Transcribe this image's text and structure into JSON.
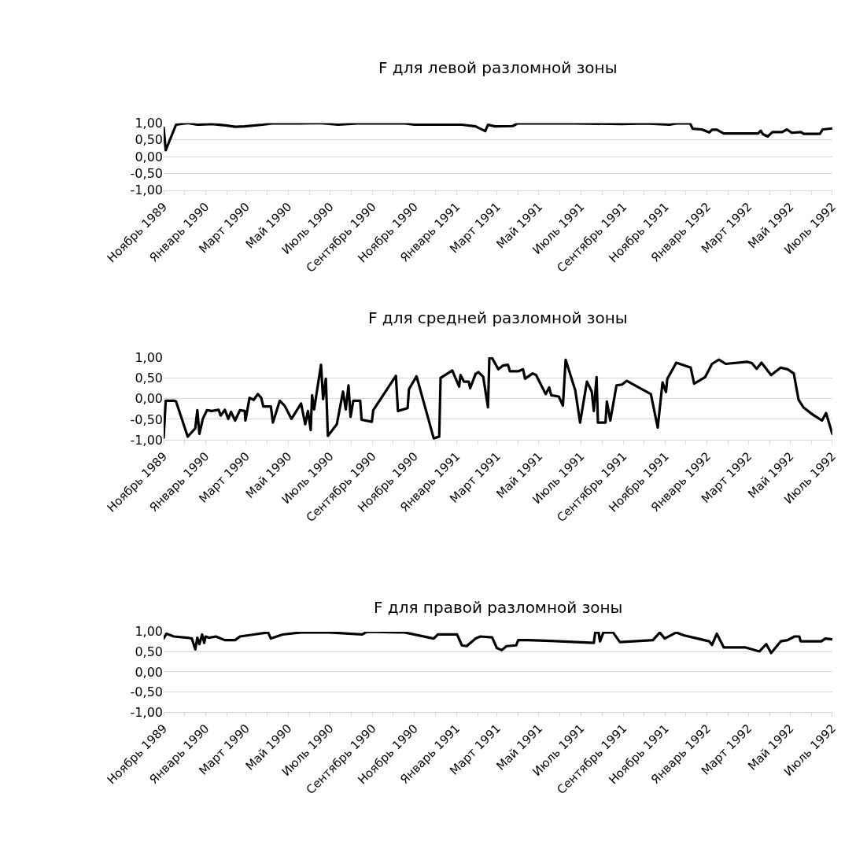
{
  "chart_data": [
    {
      "type": "line",
      "title": "F для левой разломной зоны",
      "grid": "y",
      "xlim": [
        "1989-11-01",
        "1992-07-01"
      ],
      "ylim": [
        -1,
        1
      ],
      "yticks": [
        {
          "value": -1,
          "label": "-1,00"
        },
        {
          "value": -0.5,
          "label": "-0,50"
        },
        {
          "value": 0,
          "label": "0,00"
        },
        {
          "value": 0.5,
          "label": "0,50"
        },
        {
          "value": 1,
          "label": "1,00"
        }
      ],
      "xticks": [
        {
          "value": "1989-11-01",
          "label": "Ноябрь 1989"
        },
        {
          "value": "1989-12-01",
          "label": null
        },
        {
          "value": "1990-01-01",
          "label": "Январь 1990"
        },
        {
          "value": "1990-02-01",
          "label": null
        },
        {
          "value": "1990-03-01",
          "label": "Март 1990"
        },
        {
          "value": "1990-04-01",
          "label": null
        },
        {
          "value": "1990-05-01",
          "label": "Май 1990"
        },
        {
          "value": "1990-06-01",
          "label": null
        },
        {
          "value": "1990-07-01",
          "label": "Июль 1990"
        },
        {
          "value": "1990-08-01",
          "label": null
        },
        {
          "value": "1990-09-01",
          "label": "Сентябрь 1990"
        },
        {
          "value": "1990-10-01",
          "label": null
        },
        {
          "value": "1990-11-01",
          "label": "Ноябрь 1990"
        },
        {
          "value": "1990-12-01",
          "label": null
        },
        {
          "value": "1991-01-01",
          "label": "Январь 1991"
        },
        {
          "value": "1991-02-01",
          "label": null
        },
        {
          "value": "1991-03-01",
          "label": "Март 1991"
        },
        {
          "value": "1991-04-01",
          "label": null
        },
        {
          "value": "1991-05-01",
          "label": "Май 1991"
        },
        {
          "value": "1991-06-01",
          "label": null
        },
        {
          "value": "1991-07-01",
          "label": "Июль 1991"
        },
        {
          "value": "1991-08-01",
          "label": null
        },
        {
          "value": "1991-09-01",
          "label": "Сентябрь 1991"
        },
        {
          "value": "1991-10-01",
          "label": null
        },
        {
          "value": "1991-11-01",
          "label": "Ноябрь 1991"
        },
        {
          "value": "1991-12-01",
          "label": null
        },
        {
          "value": "1992-01-01",
          "label": "Январь 1992"
        },
        {
          "value": "1992-02-01",
          "label": null
        },
        {
          "value": "1992-03-01",
          "label": "Март 1992"
        },
        {
          "value": "1992-04-01",
          "label": null
        },
        {
          "value": "1992-05-01",
          "label": "Май 1992"
        },
        {
          "value": "1992-06-01",
          "label": null
        },
        {
          "value": "1992-07-01",
          "label": "Июль 1992"
        }
      ],
      "series": [
        {
          "color": "#000000",
          "x": [
            "1989-11-01",
            "1989-11-04",
            "1989-11-19",
            "1989-12-06",
            "1989-12-20",
            "1990-01-10",
            "1990-01-30",
            "1990-02-13",
            "1990-02-27",
            "1990-03-25",
            "1990-04-08",
            "1990-05-19",
            "1990-06-16",
            "1990-07-13",
            "1990-08-10",
            "1990-10-18",
            "1990-11-01",
            "1991-01-09",
            "1991-01-29",
            "1991-02-12",
            "1991-02-16",
            "1991-02-26",
            "1991-03-24",
            "1991-03-31",
            "1991-06-21",
            "1991-08-29",
            "1991-10-03",
            "1991-11-07",
            "1991-11-17",
            "1991-12-07",
            "1991-12-11",
            "1991-12-24",
            "1992-01-04",
            "1992-01-08",
            "1992-01-15",
            "1992-01-25",
            "1992-03-15",
            "1992-03-19",
            "1992-03-22",
            "1992-03-29",
            "1992-04-05",
            "1992-04-19",
            "1992-04-26",
            "1992-05-03",
            "1992-05-17",
            "1992-05-20",
            "1992-06-13",
            "1992-06-17",
            "1992-07-01"
          ],
          "values": [
            0.86,
            0.19,
            0.95,
            1.0,
            0.95,
            0.97,
            0.93,
            0.89,
            0.9,
            0.95,
            0.99,
            0.99,
            1.0,
            0.95,
            0.99,
            0.99,
            0.95,
            0.95,
            0.9,
            0.76,
            0.95,
            0.9,
            0.91,
            0.99,
            0.99,
            0.97,
            0.99,
            0.95,
            0.99,
            0.99,
            0.83,
            0.81,
            0.72,
            0.8,
            0.8,
            0.69,
            0.69,
            0.77,
            0.67,
            0.6,
            0.73,
            0.73,
            0.81,
            0.71,
            0.73,
            0.68,
            0.68,
            0.81,
            0.84
          ]
        }
      ]
    },
    {
      "type": "line",
      "title": "F для средней разломной зоны",
      "grid": "y",
      "xlim": [
        "1989-11-01",
        "1992-07-01"
      ],
      "ylim": [
        -1,
        1
      ],
      "yticks": [
        {
          "value": -1,
          "label": "-1,00"
        },
        {
          "value": -0.5,
          "label": "-0,50"
        },
        {
          "value": 0,
          "label": "0,00"
        },
        {
          "value": 0.5,
          "label": "0,50"
        },
        {
          "value": 1,
          "label": "1,00"
        }
      ],
      "xticks": [
        {
          "value": "1989-11-01",
          "label": "Ноябрь 1989"
        },
        {
          "value": "1989-12-01",
          "label": null
        },
        {
          "value": "1990-01-01",
          "label": "Январь 1990"
        },
        {
          "value": "1990-02-01",
          "label": null
        },
        {
          "value": "1990-03-01",
          "label": "Март 1990"
        },
        {
          "value": "1990-04-01",
          "label": null
        },
        {
          "value": "1990-05-01",
          "label": "Май 1990"
        },
        {
          "value": "1990-06-01",
          "label": null
        },
        {
          "value": "1990-07-01",
          "label": "Июль 1990"
        },
        {
          "value": "1990-08-01",
          "label": null
        },
        {
          "value": "1990-09-01",
          "label": "Сентябрь 1990"
        },
        {
          "value": "1990-10-01",
          "label": null
        },
        {
          "value": "1990-11-01",
          "label": "Ноябрь 1990"
        },
        {
          "value": "1990-12-01",
          "label": null
        },
        {
          "value": "1991-01-01",
          "label": "Январь 1991"
        },
        {
          "value": "1991-02-01",
          "label": null
        },
        {
          "value": "1991-03-01",
          "label": "Март 1991"
        },
        {
          "value": "1991-04-01",
          "label": null
        },
        {
          "value": "1991-05-01",
          "label": "Май 1991"
        },
        {
          "value": "1991-06-01",
          "label": null
        },
        {
          "value": "1991-07-01",
          "label": "Июль 1991"
        },
        {
          "value": "1991-08-01",
          "label": null
        },
        {
          "value": "1991-09-01",
          "label": "Сентябрь 1991"
        },
        {
          "value": "1991-10-01",
          "label": null
        },
        {
          "value": "1991-11-01",
          "label": "Ноябрь 1991"
        },
        {
          "value": "1991-12-01",
          "label": null
        },
        {
          "value": "1992-01-01",
          "label": "Январь 1992"
        },
        {
          "value": "1992-02-01",
          "label": null
        },
        {
          "value": "1992-03-01",
          "label": "Март 1992"
        },
        {
          "value": "1992-04-01",
          "label": null
        },
        {
          "value": "1992-05-01",
          "label": "Май 1992"
        },
        {
          "value": "1992-06-01",
          "label": null
        },
        {
          "value": "1992-07-01",
          "label": "Июль 1992"
        }
      ],
      "series": [
        {
          "color": "#000000",
          "x": [
            "1989-11-01",
            "1989-11-04",
            "1989-11-16",
            "1989-11-19",
            "1989-12-06",
            "1989-12-17",
            "1989-12-20",
            "1989-12-23",
            "1989-12-28",
            "1990-01-03",
            "1990-01-10",
            "1990-01-20",
            "1990-01-23",
            "1990-01-29",
            "1990-02-03",
            "1990-02-07",
            "1990-02-13",
            "1990-02-20",
            "1990-02-27",
            "1990-02-28",
            "1990-03-06",
            "1990-03-12",
            "1990-03-18",
            "1990-03-23",
            "1990-03-26",
            "1990-04-06",
            "1990-04-09",
            "1990-04-19",
            "1990-04-26",
            "1990-05-06",
            "1990-05-20",
            "1990-05-26",
            "1990-05-30",
            "1990-06-03",
            "1990-06-05",
            "1990-06-08",
            "1990-06-18",
            "1990-06-21",
            "1990-06-25",
            "1990-06-28",
            "1990-07-11",
            "1990-07-20",
            "1990-07-24",
            "1990-07-28",
            "1990-07-31",
            "1990-08-04",
            "1990-08-14",
            "1990-08-16",
            "1990-08-31",
            "1990-09-02",
            "1990-10-05",
            "1990-10-08",
            "1990-10-22",
            "1990-10-24",
            "1990-11-04",
            "1990-11-29",
            "1990-12-07",
            "1990-12-09",
            "1990-12-26",
            "1991-01-05",
            "1991-01-07",
            "1991-01-12",
            "1991-01-19",
            "1991-01-21",
            "1991-01-29",
            "1991-02-02",
            "1991-02-09",
            "1991-02-16",
            "1991-02-18",
            "1991-02-22",
            "1991-03-03",
            "1991-03-10",
            "1991-03-17",
            "1991-03-20",
            "1991-04-01",
            "1991-04-08",
            "1991-04-11",
            "1991-04-22",
            "1991-04-27",
            "1991-05-11",
            "1991-05-16",
            "1991-05-19",
            "1991-05-30",
            "1991-06-05",
            "1991-06-09",
            "1991-06-23",
            "1991-06-30",
            "1991-07-10",
            "1991-07-17",
            "1991-07-20",
            "1991-07-24",
            "1991-07-26",
            "1991-08-06",
            "1991-08-08",
            "1991-08-13",
            "1991-08-22",
            "1991-08-30",
            "1991-09-06",
            "1991-10-11",
            "1991-10-21",
            "1991-10-28",
            "1991-11-02",
            "1991-11-04",
            "1991-11-17",
            "1991-12-08",
            "1991-12-13",
            "1991-12-29",
            "1992-01-08",
            "1992-01-18",
            "1992-01-28",
            "1992-02-28",
            "1992-03-06",
            "1992-03-13",
            "1992-03-20",
            "1992-04-03",
            "1992-04-17",
            "1992-04-27",
            "1992-05-06",
            "1992-05-13",
            "1992-05-20",
            "1992-06-02",
            "1992-06-16",
            "1992-06-22",
            "1992-07-01"
          ],
          "values": [
            -0.94,
            -0.05,
            -0.05,
            -0.07,
            -0.92,
            -0.72,
            -0.28,
            -0.85,
            -0.49,
            -0.28,
            -0.3,
            -0.27,
            -0.41,
            -0.27,
            -0.49,
            -0.32,
            -0.53,
            -0.28,
            -0.3,
            -0.53,
            0.02,
            -0.03,
            0.11,
            0.02,
            -0.19,
            -0.19,
            -0.58,
            -0.05,
            -0.17,
            -0.49,
            -0.12,
            -0.62,
            -0.3,
            -0.76,
            0.08,
            -0.26,
            0.82,
            -0.01,
            0.48,
            -0.9,
            -0.62,
            0.17,
            -0.26,
            0.32,
            -0.44,
            -0.05,
            -0.05,
            -0.51,
            -0.56,
            -0.28,
            0.55,
            -0.3,
            -0.23,
            0.23,
            0.54,
            -0.96,
            -0.92,
            0.5,
            0.68,
            0.29,
            0.57,
            0.41,
            0.41,
            0.25,
            0.6,
            0.64,
            0.53,
            -0.21,
            0.98,
            0.98,
            0.71,
            0.8,
            0.82,
            0.66,
            0.66,
            0.71,
            0.48,
            0.61,
            0.57,
            0.11,
            0.27,
            0.08,
            0.05,
            -0.17,
            0.94,
            0.2,
            -0.58,
            0.41,
            0.17,
            -0.3,
            0.52,
            -0.58,
            -0.58,
            -0.07,
            -0.53,
            0.32,
            0.34,
            0.43,
            0.11,
            -0.7,
            0.39,
            0.16,
            0.48,
            0.87,
            0.75,
            0.36,
            0.52,
            0.84,
            0.94,
            0.84,
            0.89,
            0.86,
            0.72,
            0.87,
            0.57,
            0.75,
            0.71,
            0.61,
            -0.03,
            -0.21,
            -0.38,
            -0.53,
            -0.35,
            -0.85
          ]
        }
      ]
    },
    {
      "type": "line",
      "title": "F для правой разломной зоны",
      "grid": "y",
      "xlim": [
        "1989-11-01",
        "1992-07-01"
      ],
      "ylim": [
        -1,
        1
      ],
      "yticks": [
        {
          "value": -1,
          "label": "-1,00"
        },
        {
          "value": -0.5,
          "label": "-0,50"
        },
        {
          "value": 0,
          "label": "0,00"
        },
        {
          "value": 0.5,
          "label": "0,50"
        },
        {
          "value": 1,
          "label": "1,00"
        }
      ],
      "xticks": [
        {
          "value": "1989-11-01",
          "label": "Ноябрь 1989"
        },
        {
          "value": "1989-12-01",
          "label": null
        },
        {
          "value": "1990-01-01",
          "label": "Январь 1990"
        },
        {
          "value": "1990-02-01",
          "label": null
        },
        {
          "value": "1990-03-01",
          "label": "Март 1990"
        },
        {
          "value": "1990-04-01",
          "label": null
        },
        {
          "value": "1990-05-01",
          "label": "Май 1990"
        },
        {
          "value": "1990-06-01",
          "label": null
        },
        {
          "value": "1990-07-01",
          "label": "Июль 1990"
        },
        {
          "value": "1990-08-01",
          "label": null
        },
        {
          "value": "1990-09-01",
          "label": "Сентябрь 1990"
        },
        {
          "value": "1990-10-01",
          "label": null
        },
        {
          "value": "1990-11-01",
          "label": "Ноябрь 1990"
        },
        {
          "value": "1990-12-01",
          "label": null
        },
        {
          "value": "1991-01-01",
          "label": "Январь 1991"
        },
        {
          "value": "1991-02-01",
          "label": null
        },
        {
          "value": "1991-03-01",
          "label": "Март 1991"
        },
        {
          "value": "1991-04-01",
          "label": null
        },
        {
          "value": "1991-05-01",
          "label": "Май 1991"
        },
        {
          "value": "1991-06-01",
          "label": null
        },
        {
          "value": "1991-07-01",
          "label": "Июль 1991"
        },
        {
          "value": "1991-08-01",
          "label": null
        },
        {
          "value": "1991-09-01",
          "label": "Сентябрь 1991"
        },
        {
          "value": "1991-10-01",
          "label": null
        },
        {
          "value": "1991-11-01",
          "label": "Ноябрь 1991"
        },
        {
          "value": "1991-12-01",
          "label": null
        },
        {
          "value": "1992-01-01",
          "label": "Январь 1992"
        },
        {
          "value": "1992-02-01",
          "label": null
        },
        {
          "value": "1992-03-01",
          "label": "Март 1992"
        },
        {
          "value": "1992-04-01",
          "label": null
        },
        {
          "value": "1992-05-01",
          "label": "Май 1992"
        },
        {
          "value": "1992-06-01",
          "label": null
        },
        {
          "value": "1992-07-01",
          "label": "Июль 1992"
        }
      ],
      "series": [
        {
          "color": "#000000",
          "x": [
            "1989-11-01",
            "1989-11-05",
            "1989-11-16",
            "1989-12-06",
            "1989-12-12",
            "1989-12-17",
            "1989-12-20",
            "1989-12-23",
            "1989-12-27",
            "1989-12-30",
            "1990-01-01",
            "1990-01-06",
            "1990-01-16",
            "1990-01-23",
            "1990-01-29",
            "1990-02-13",
            "1990-02-20",
            "1990-03-12",
            "1990-04-02",
            "1990-04-06",
            "1990-04-23",
            "1990-05-20",
            "1990-06-30",
            "1990-08-17",
            "1990-08-24",
            "1990-10-18",
            "1990-11-29",
            "1990-12-05",
            "1991-01-02",
            "1991-01-09",
            "1991-01-16",
            "1991-01-29",
            "1991-02-05",
            "1991-02-22",
            "1991-03-01",
            "1991-03-08",
            "1991-03-15",
            "1991-03-29",
            "1991-04-01",
            "1991-04-15",
            "1991-05-19",
            "1991-07-20",
            "1991-07-22",
            "1991-07-27",
            "1991-07-29",
            "1991-08-03",
            "1991-08-17",
            "1991-08-27",
            "1991-10-14",
            "1991-10-24",
            "1991-10-31",
            "1991-11-17",
            "1991-11-28",
            "1991-12-18",
            "1992-01-04",
            "1992-01-08",
            "1992-01-15",
            "1992-01-25",
            "1992-02-25",
            "1992-03-17",
            "1992-03-27",
            "1992-04-03",
            "1992-04-17",
            "1992-04-27",
            "1992-05-07",
            "1992-05-14",
            "1992-05-16",
            "1992-06-15",
            "1992-06-21",
            "1992-07-01"
          ],
          "values": [
            0.83,
            0.95,
            0.88,
            0.85,
            0.83,
            0.56,
            0.85,
            0.69,
            0.93,
            0.72,
            0.88,
            0.85,
            0.88,
            0.83,
            0.79,
            0.79,
            0.88,
            0.93,
            0.98,
            0.83,
            0.93,
            0.98,
            0.98,
            0.93,
            1.0,
            0.98,
            0.83,
            0.93,
            0.93,
            0.66,
            0.64,
            0.83,
            0.88,
            0.86,
            0.59,
            0.54,
            0.64,
            0.66,
            0.79,
            0.79,
            0.77,
            0.72,
            0.98,
            0.98,
            0.76,
            0.98,
            0.98,
            0.74,
            0.79,
            0.98,
            0.83,
            0.98,
            0.91,
            0.83,
            0.76,
            0.67,
            0.95,
            0.61,
            0.61,
            0.51,
            0.69,
            0.47,
            0.76,
            0.79,
            0.88,
            0.88,
            0.76,
            0.76,
            0.83,
            0.81
          ]
        }
      ]
    }
  ]
}
